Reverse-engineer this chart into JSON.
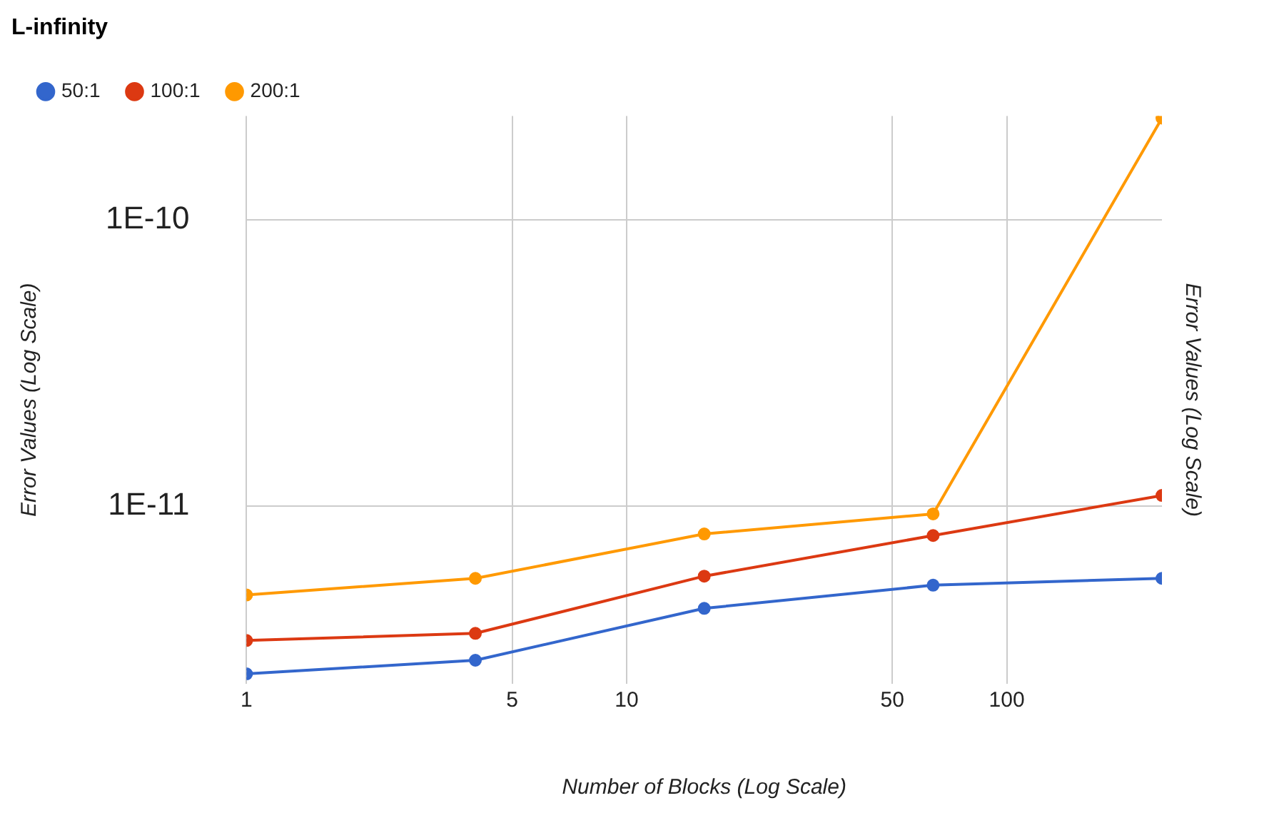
{
  "chart_data": {
    "type": "line",
    "title": "L-infinity",
    "xlabel": "Number of Blocks (Log Scale)",
    "ylabel": "Error Values (Log Scale)",
    "y2label": "Error Values (Log Scale)",
    "x": [
      1,
      4,
      16,
      64,
      256
    ],
    "series": [
      {
        "name": "50:1",
        "color": "#3366cc",
        "values": [
          2.6e-12,
          2.9e-12,
          4.4e-12,
          5.3e-12,
          5.6e-12
        ]
      },
      {
        "name": "100:1",
        "color": "#dc3912",
        "values": [
          3.4e-12,
          3.6e-12,
          5.7e-12,
          7.9e-12,
          1.09e-11
        ]
      },
      {
        "name": "200:1",
        "color": "#ff9900",
        "values": [
          4.9e-12,
          5.6e-12,
          8e-12,
          9.4e-12,
          2.26e-10
        ]
      }
    ],
    "log": "xy",
    "xlim": [
      1,
      256
    ],
    "xticks": [
      1,
      5,
      10,
      50,
      100
    ],
    "ylim": [
      2.4e-12,
      2.3e-10
    ],
    "yticks": [
      {
        "value": 1e-11,
        "label": "1E-11"
      },
      {
        "value": 1e-10,
        "label": "1E-10"
      }
    ],
    "grid": true,
    "legend": "top left",
    "marker": "circle",
    "line_style": "solid"
  }
}
